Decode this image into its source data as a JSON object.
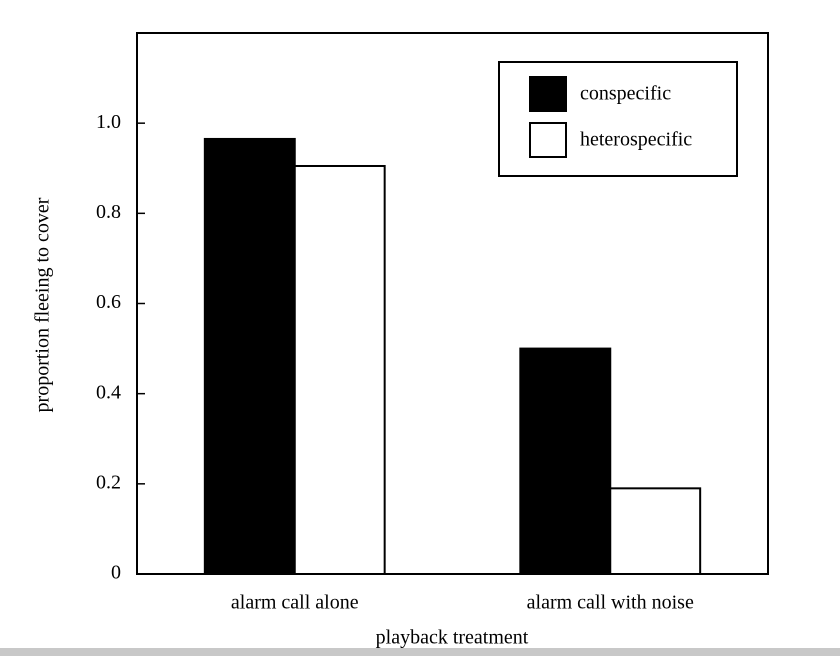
{
  "chart_data": {
    "type": "bar",
    "x_label": "playback treatment",
    "y_label": "proportion fleeing to cover",
    "categories": [
      "alarm call alone",
      "alarm call with noise"
    ],
    "series": [
      {
        "name": "conspecific",
        "color": "#000000",
        "values": [
          0.965,
          0.5
        ]
      },
      {
        "name": "heterospecific",
        "color": "#ffffff",
        "values": [
          0.905,
          0.19
        ]
      }
    ],
    "ylim": [
      0,
      1.2
    ],
    "yticks": [
      0,
      0.2,
      0.4,
      0.6,
      0.8,
      {
        "value": 1,
        "label": "1.0"
      }
    ],
    "legend": "upper right"
  }
}
